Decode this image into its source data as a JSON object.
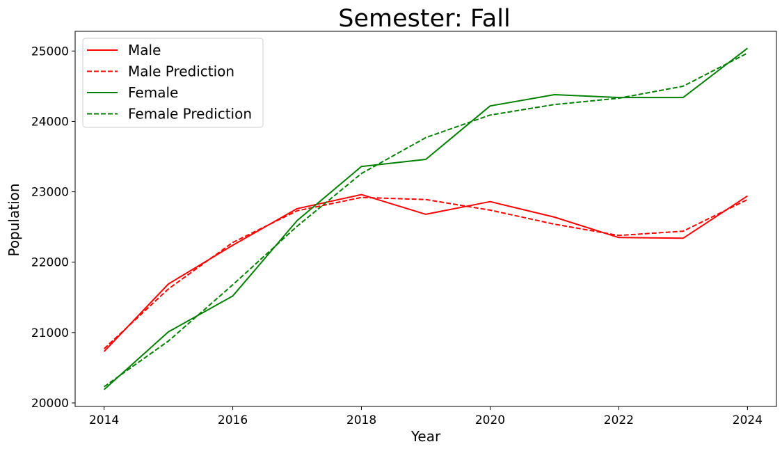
{
  "chart_data": {
    "type": "line",
    "title": "Semester: Fall",
    "xlabel": "Year",
    "ylabel": "Population",
    "xlim": [
      2013.55,
      2024.45
    ],
    "ylim": [
      19950,
      25280
    ],
    "x_ticks": [
      2014,
      2016,
      2018,
      2020,
      2022,
      2024
    ],
    "y_ticks": [
      20000,
      21000,
      22000,
      23000,
      24000,
      25000
    ],
    "grid": false,
    "legend_position": "top-left",
    "x": [
      2014,
      2015,
      2016,
      2017,
      2018,
      2019,
      2020,
      2021,
      2022,
      2023,
      2024
    ],
    "series": [
      {
        "name": "Male",
        "color": "#ff0000",
        "style": "solid",
        "values": [
          20730,
          21690,
          22240,
          22760,
          22960,
          22680,
          22860,
          22640,
          22350,
          22340,
          22940
        ]
      },
      {
        "name": "Male Prediction",
        "color": "#ff0000",
        "style": "dashed",
        "values": [
          20770,
          21620,
          22280,
          22730,
          22920,
          22890,
          22740,
          22540,
          22380,
          22440,
          22890
        ]
      },
      {
        "name": "Female",
        "color": "#008000",
        "style": "solid",
        "values": [
          20190,
          21010,
          21520,
          22590,
          23360,
          23460,
          24220,
          24380,
          24340,
          24340,
          25040
        ]
      },
      {
        "name": "Female Prediction",
        "color": "#008000",
        "style": "dashed",
        "values": [
          20230,
          20880,
          21680,
          22510,
          23260,
          23770,
          24090,
          24240,
          24330,
          24500,
          24970
        ]
      }
    ]
  }
}
